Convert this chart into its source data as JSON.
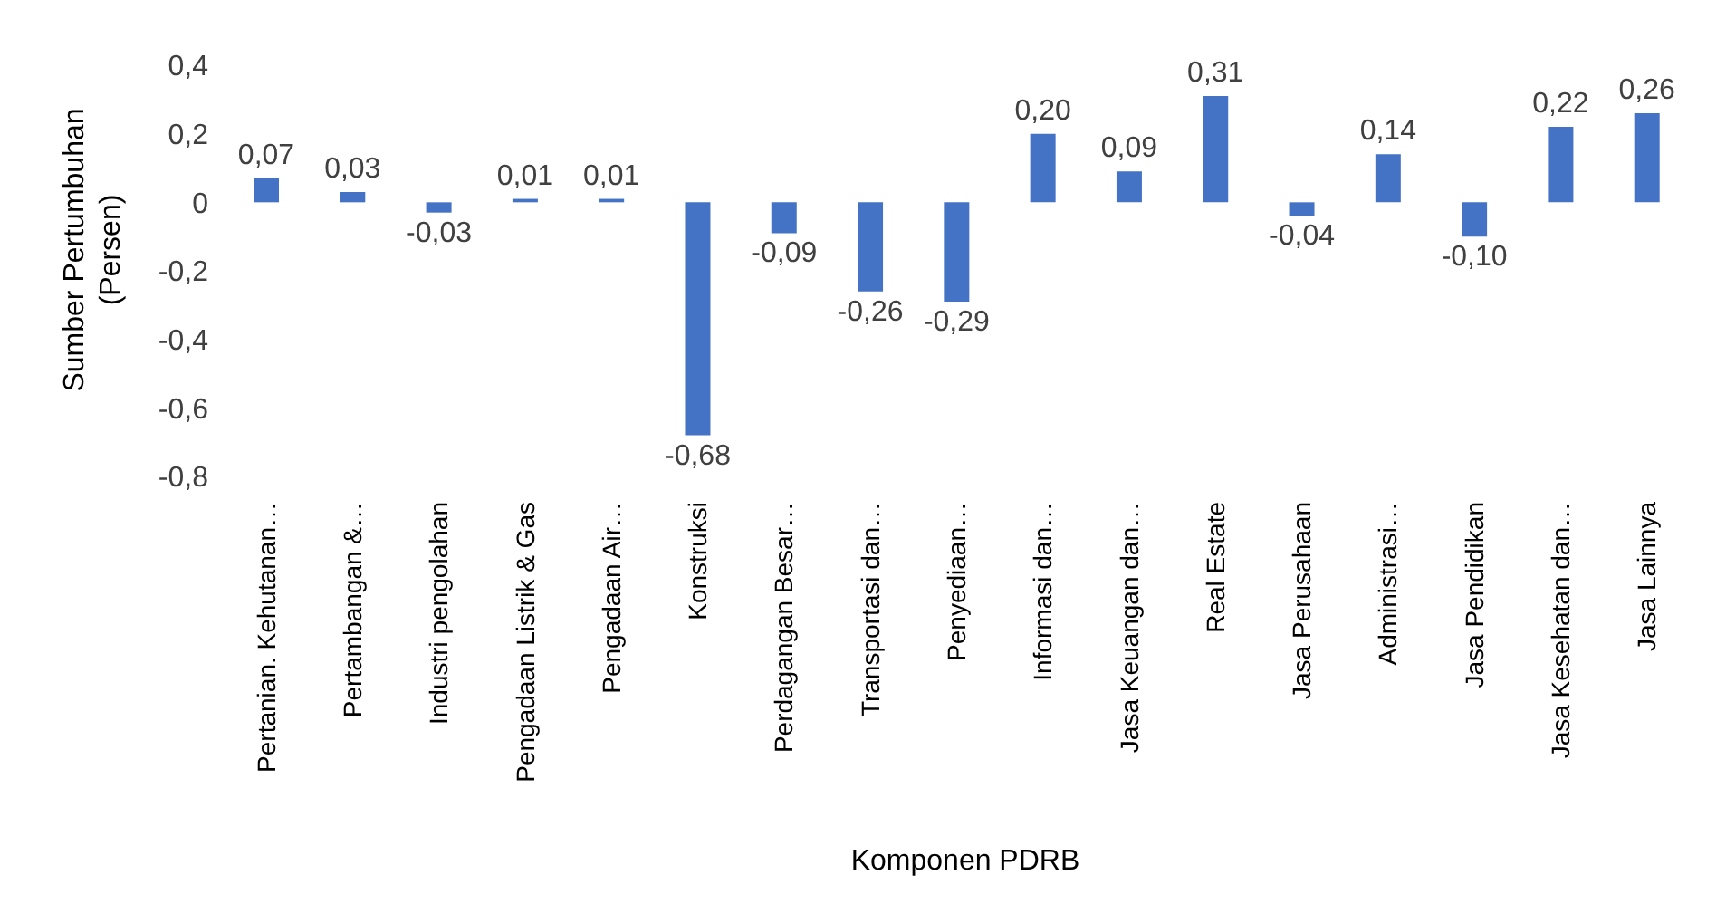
{
  "chart_data": {
    "type": "bar",
    "xlabel": "Komponen PDRB",
    "ylabel": "Sumber Pertumbuhan\n(Persen)",
    "categories": [
      "Pertanian. Kehutanan…",
      "Pertambangan &…",
      "Industri pengolahan",
      "Pengadaan Listrik & Gas",
      "Pengadaan Air…",
      "Konstruksi",
      "Perdagangan Besar…",
      "Transportasi dan…",
      "Penyediaan…",
      "Informasi dan…",
      "Jasa Keuangan dan…",
      "Real Estate",
      "Jasa Perusahaan",
      "Administrasi…",
      "Jasa Pendidikan",
      "Jasa Kesehatan dan…",
      "Jasa Lainnya"
    ],
    "values": [
      0.07,
      0.03,
      -0.03,
      0.01,
      0.01,
      -0.68,
      -0.09,
      -0.26,
      -0.29,
      0.2,
      0.09,
      0.31,
      -0.04,
      0.14,
      -0.1,
      0.22,
      0.26
    ],
    "value_labels": [
      "0,07",
      "0,03",
      "-0,03",
      "0,01",
      "0,01",
      "-0,68",
      "-0,09",
      "-0,26",
      "-0,29",
      "0,20",
      "0,09",
      "0,31",
      "-0,04",
      "0,14",
      "-0,10",
      "0,22",
      "0,26"
    ],
    "color": "#4472c4",
    "ylim": [
      -0.8,
      0.4
    ],
    "yticks": [
      {
        "value": 0.4,
        "label": "0,4"
      },
      {
        "value": 0.2,
        "label": "0,2"
      },
      {
        "value": 0,
        "label": "0"
      },
      {
        "value": -0.2,
        "label": "-0,2"
      },
      {
        "value": -0.4,
        "label": "-0,4"
      },
      {
        "value": -0.6,
        "label": "-0,6"
      },
      {
        "value": -0.8,
        "label": "-0,8"
      }
    ],
    "grid": false,
    "legend": false
  }
}
